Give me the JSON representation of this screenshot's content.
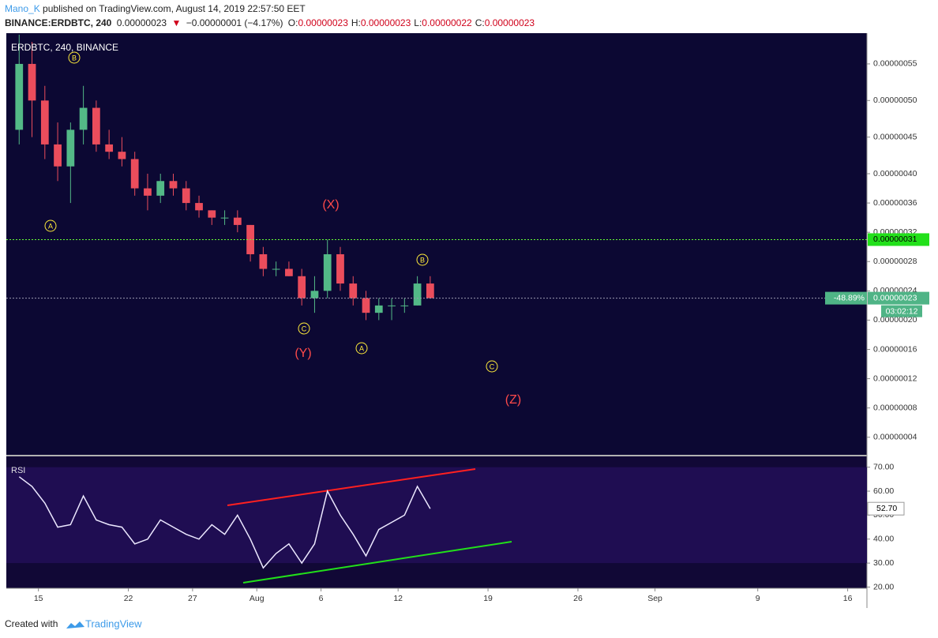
{
  "header": {
    "author": "Mano_K",
    "published": "published on TradingView.com, August 14, 2019 22:57:50 EET",
    "symbol": "BINANCE:ERDBTC, 240",
    "last": "0.00000023",
    "arrow": "▼",
    "change": "−0.00000001 (−4.17%)",
    "ohlc": [
      {
        "key": "O:",
        "value": "0.00000023"
      },
      {
        "key": "H:",
        "value": "0.00000023"
      },
      {
        "key": "L:",
        "value": "0.00000022"
      },
      {
        "key": "C:",
        "value": "0.00000023"
      }
    ]
  },
  "chart_data": [
    {
      "type": "candlestick",
      "title": "ERDBTC, 240, BINANCE",
      "up_color": "#53b987",
      "down_color": "#eb4d5c",
      "grid": false,
      "x": [
        "2019-07-13",
        "2019-07-14",
        "2019-07-15",
        "2019-07-16",
        "2019-07-17",
        "2019-07-18",
        "2019-07-19",
        "2019-07-20",
        "2019-07-21",
        "2019-07-22",
        "2019-07-23",
        "2019-07-24",
        "2019-07-25",
        "2019-07-26",
        "2019-07-27",
        "2019-07-28",
        "2019-07-29",
        "2019-07-30",
        "2019-07-31",
        "2019-08-01",
        "2019-08-02",
        "2019-08-03",
        "2019-08-04",
        "2019-08-05",
        "2019-08-06",
        "2019-08-07",
        "2019-08-08",
        "2019-08-09",
        "2019-08-10",
        "2019-08-11",
        "2019-08-12",
        "2019-08-13",
        "2019-08-14"
      ],
      "open": [
        4.6e-07,
        5.5e-07,
        5e-07,
        4.4e-07,
        4.1e-07,
        4.6e-07,
        4.9e-07,
        4.4e-07,
        4.3e-07,
        4.2e-07,
        3.8e-07,
        3.7e-07,
        3.9e-07,
        3.8e-07,
        3.6e-07,
        3.5e-07,
        3.4e-07,
        3.4e-07,
        3.3e-07,
        2.9e-07,
        2.7e-07,
        2.7e-07,
        2.6e-07,
        2.3e-07,
        2.4e-07,
        2.9e-07,
        2.5e-07,
        2.3e-07,
        2.1e-07,
        2.2e-07,
        2.2e-07,
        2.2e-07,
        2.5e-07
      ],
      "high": [
        5.9e-07,
        5.8e-07,
        5.2e-07,
        4.7e-07,
        4.7e-07,
        5.2e-07,
        5e-07,
        4.6e-07,
        4.5e-07,
        4.3e-07,
        4e-07,
        4e-07,
        4e-07,
        3.9e-07,
        3.7e-07,
        3.5e-07,
        3.5e-07,
        3.5e-07,
        3.3e-07,
        3e-07,
        2.8e-07,
        2.8e-07,
        2.7e-07,
        2.6e-07,
        3.1e-07,
        3e-07,
        2.6e-07,
        2.4e-07,
        2.3e-07,
        2.3e-07,
        2.3e-07,
        2.6e-07,
        2.6e-07
      ],
      "low": [
        4.4e-07,
        4.5e-07,
        4.2e-07,
        3.9e-07,
        3.6e-07,
        4.4e-07,
        4.3e-07,
        4.2e-07,
        4.1e-07,
        3.7e-07,
        3.5e-07,
        3.6e-07,
        3.7e-07,
        3.5e-07,
        3.4e-07,
        3.3e-07,
        3.3e-07,
        3.2e-07,
        2.8e-07,
        2.6e-07,
        2.6e-07,
        2.6e-07,
        2.2e-07,
        2.1e-07,
        2.3e-07,
        2.4e-07,
        2.2e-07,
        2e-07,
        2e-07,
        2e-07,
        2.1e-07,
        2.2e-07,
        2.3e-07
      ],
      "close": [
        5.5e-07,
        5e-07,
        4.4e-07,
        4.1e-07,
        4.6e-07,
        4.9e-07,
        4.4e-07,
        4.3e-07,
        4.2e-07,
        3.8e-07,
        3.7e-07,
        3.9e-07,
        3.8e-07,
        3.6e-07,
        3.5e-07,
        3.4e-07,
        3.4e-07,
        3.3e-07,
        2.9e-07,
        2.7e-07,
        2.7e-07,
        2.6e-07,
        2.3e-07,
        2.4e-07,
        2.9e-07,
        2.5e-07,
        2.3e-07,
        2.1e-07,
        2.2e-07,
        2.2e-07,
        2.2e-07,
        2.5e-07,
        2.3e-07
      ],
      "xlim": [
        "2019-07-12T12:00",
        "2019-09-17T12:00"
      ],
      "ylim": [
        1.6e-08,
        5.92e-07
      ],
      "yticks": [
        {
          "value": 4e-08,
          "label": "0.00000004"
        },
        {
          "value": 8e-08,
          "label": "0.00000008"
        },
        {
          "value": 1.2e-07,
          "label": "0.00000012"
        },
        {
          "value": 1.6e-07,
          "label": "0.00000016"
        },
        {
          "value": 2e-07,
          "label": "0.00000020"
        },
        {
          "value": 2.4e-07,
          "label": "0.00000024"
        },
        {
          "value": 2.8e-07,
          "label": "0.00000028"
        },
        {
          "value": 3.2e-07,
          "label": "0.00000032"
        },
        {
          "value": 3.6e-07,
          "label": "0.00000036"
        },
        {
          "value": 4e-07,
          "label": "0.00000040"
        },
        {
          "value": 4.5e-07,
          "label": "0.00000045"
        },
        {
          "value": 5e-07,
          "label": "0.00000050"
        },
        {
          "value": 5.5e-07,
          "label": "0.00000055"
        }
      ],
      "price_lines": [
        {
          "value": 3.1e-07,
          "label": "0.00000031",
          "color": "#66ff33",
          "label_color": "#22e01a"
        }
      ],
      "last_price": {
        "value": 2.3e-07,
        "label": "0.00000023",
        "color": "#9a9ab0",
        "label_color": "#4fb486"
      },
      "change_label": "-48.89%",
      "countdown": "03:02:12",
      "annotations": [
        {
          "text": "B",
          "style": "circle"
        },
        {
          "text": "A",
          "style": "circle"
        },
        {
          "text": "(X)",
          "style": "plain"
        },
        {
          "text": "C",
          "style": "circle"
        },
        {
          "text": "(Y)",
          "style": "plain"
        },
        {
          "text": "A",
          "style": "circle"
        },
        {
          "text": "B",
          "style": "circle"
        },
        {
          "text": "C",
          "style": "circle"
        },
        {
          "text": "(Z)",
          "style": "plain"
        }
      ],
      "circle_color": "#ffeb3b",
      "plain_color": "#ff4a4a"
    },
    {
      "type": "line",
      "title": "RSI",
      "color": "#ece8ff",
      "x": [
        "2019-07-13",
        "2019-07-14",
        "2019-07-15",
        "2019-07-16",
        "2019-07-17",
        "2019-07-18",
        "2019-07-19",
        "2019-07-20",
        "2019-07-21",
        "2019-07-22",
        "2019-07-23",
        "2019-07-24",
        "2019-07-25",
        "2019-07-26",
        "2019-07-27",
        "2019-07-28",
        "2019-07-29",
        "2019-07-30",
        "2019-07-31",
        "2019-08-01",
        "2019-08-02",
        "2019-08-03",
        "2019-08-04",
        "2019-08-05",
        "2019-08-06",
        "2019-08-07",
        "2019-08-08",
        "2019-08-09",
        "2019-08-10",
        "2019-08-11",
        "2019-08-12",
        "2019-08-13",
        "2019-08-14"
      ],
      "values": [
        66,
        62,
        55,
        45,
        46,
        58,
        48,
        46,
        45,
        38,
        40,
        48,
        45,
        42,
        40,
        46,
        42,
        50,
        40,
        28,
        34,
        38,
        30,
        38,
        60,
        50,
        42,
        33,
        44,
        47,
        50,
        62,
        52.7
      ],
      "last_value": {
        "value": 52.7,
        "label": "52.70"
      },
      "band": [
        30,
        70
      ],
      "band_color": "#1f0d52",
      "xlim": [
        "2019-07-12T12:00",
        "2019-09-17T12:00"
      ],
      "ylim": [
        19.5,
        74.5
      ],
      "yticks": [
        {
          "value": 20,
          "label": "20.00"
        },
        {
          "value": 30,
          "label": "30.00"
        },
        {
          "value": 40,
          "label": "40.00"
        },
        {
          "value": 50,
          "label": "50.00"
        },
        {
          "value": 60,
          "label": "60.00"
        },
        {
          "value": 70,
          "label": "70.00"
        }
      ],
      "xticks": [
        {
          "value": "2019-07-15",
          "label": "15"
        },
        {
          "value": "2019-07-22",
          "label": "22"
        },
        {
          "value": "2019-07-27",
          "label": "27"
        },
        {
          "value": "2019-08-01",
          "label": "Aug"
        },
        {
          "value": "2019-08-06",
          "label": "6"
        },
        {
          "value": "2019-08-12",
          "label": "12"
        },
        {
          "value": "2019-08-19",
          "label": "19"
        },
        {
          "value": "2019-08-26",
          "label": "26"
        },
        {
          "value": "2019-09-01",
          "label": "Sep"
        },
        {
          "value": "2019-09-09",
          "label": "9"
        },
        {
          "value": "2019-09-16",
          "label": "16"
        }
      ]
    }
  ],
  "footer": {
    "text": "Created with",
    "brand": "TradingView"
  }
}
